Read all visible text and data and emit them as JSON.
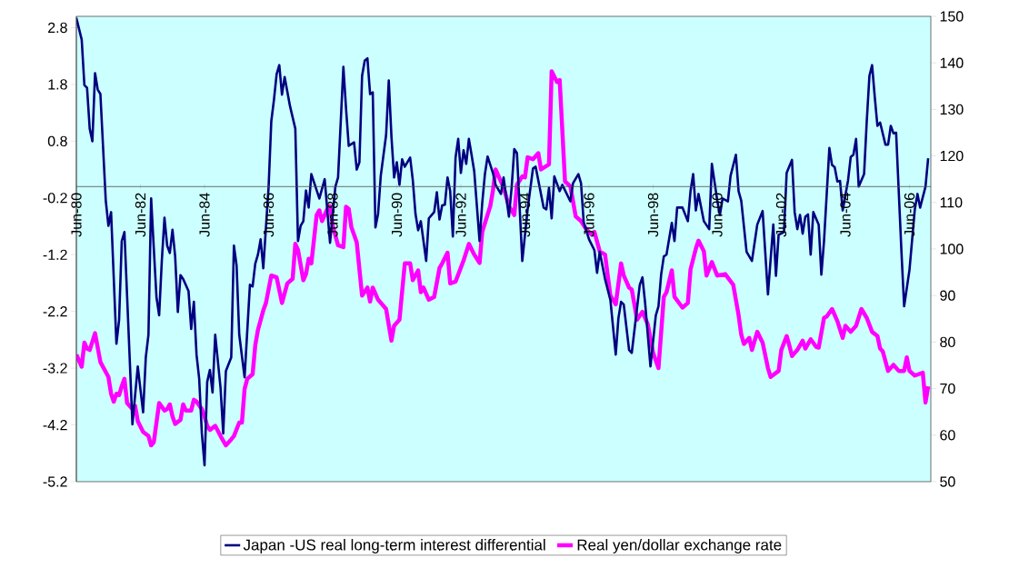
{
  "chart_data": {
    "type": "line",
    "series": [
      {
        "name": "Japan -US real long-term interest differential",
        "color": "#000080",
        "x": [
          "1980-06",
          "1980-08",
          "1980-09",
          "1980-10",
          "1980-11",
          "1980-12",
          "1981-01",
          "1981-02",
          "1981-03",
          "1981-05",
          "1981-06",
          "1981-07",
          "1981-09",
          "1981-10",
          "1981-11",
          "1981-12",
          "1982-03",
          "1982-05",
          "1982-07",
          "1982-08",
          "1982-09",
          "1982-10",
          "1982-11",
          "1982-12",
          "1983-01",
          "1983-02",
          "1983-03",
          "1983-04",
          "1983-05",
          "1983-06",
          "1983-07",
          "1983-08",
          "1983-09",
          "1983-10",
          "1983-12",
          "1984-01",
          "1984-02",
          "1984-03",
          "1984-04",
          "1984-05",
          "1984-06",
          "1984-07",
          "1984-08",
          "1984-09",
          "1984-10",
          "1984-12",
          "1985-01",
          "1985-02",
          "1985-04",
          "1985-05",
          "1985-06",
          "1985-07",
          "1985-09",
          "1985-11",
          "1985-12",
          "1986-01",
          "1986-02",
          "1986-03",
          "1986-04",
          "1986-06",
          "1986-07",
          "1986-08",
          "1986-09",
          "1986-10",
          "1986-11",
          "1986-12",
          "1987-02",
          "1987-04",
          "1987-05",
          "1987-06",
          "1987-07",
          "1987-08",
          "1987-09",
          "1987-10",
          "1988-01",
          "1988-03",
          "1988-05",
          "1988-07",
          "1988-08",
          "1988-10",
          "1988-11",
          "1988-12",
          "1989-02",
          "1989-03",
          "1989-04",
          "1989-05",
          "1989-06",
          "1989-07",
          "1989-08",
          "1989-09",
          "1989-10",
          "1989-11",
          "1989-12",
          "1990-02",
          "1990-03",
          "1990-04",
          "1990-05",
          "1990-06",
          "1990-07",
          "1990-08",
          "1990-09",
          "1990-11",
          "1990-12",
          "1991-01",
          "1991-02",
          "1991-03",
          "1991-05",
          "1991-06",
          "1991-08",
          "1991-09",
          "1991-10",
          "1991-11",
          "1991-12",
          "1992-01",
          "1992-02",
          "1992-03",
          "1992-04",
          "1992-05",
          "1992-06",
          "1992-07",
          "1992-08",
          "1992-09",
          "1992-10",
          "1992-11",
          "1993-01",
          "1993-02",
          "1993-03",
          "1993-04",
          "1993-06",
          "1993-07",
          "1993-09",
          "1993-10",
          "1993-12",
          "1994-01",
          "1994-02",
          "1994-03",
          "1994-05",
          "1994-07",
          "1994-09",
          "1994-10",
          "1995-01",
          "1995-02",
          "1995-03",
          "1995-04",
          "1995-05",
          "1995-07",
          "1995-08",
          "1995-11",
          "1995-12",
          "1996-02",
          "1996-03",
          "1996-04",
          "1996-06",
          "1996-08",
          "1996-09",
          "1996-10",
          "1996-12",
          "1997-02",
          "1997-04",
          "1997-05",
          "1997-06",
          "1997-07",
          "1997-09",
          "1997-10",
          "1998-01",
          "1998-02",
          "1998-03",
          "1998-05",
          "1998-07",
          "1998-08",
          "1998-09",
          "1998-10",
          "1998-11",
          "1999-01",
          "1999-02",
          "1999-03",
          "1999-05",
          "1999-07",
          "1999-08",
          "1999-09",
          "1999-10",
          "1999-11",
          "2000-01",
          "2000-03",
          "2000-04",
          "2000-06",
          "2000-07",
          "2000-08",
          "2000-10",
          "2000-11",
          "2001-01",
          "2001-02",
          "2001-03",
          "2001-05",
          "2001-07",
          "2001-09",
          "2001-11",
          "2002-01",
          "2002-03",
          "2002-04",
          "2002-05",
          "2002-07",
          "2002-08",
          "2002-10",
          "2002-11",
          "2002-12",
          "2003-01",
          "2003-02",
          "2003-03",
          "2003-04",
          "2003-05",
          "2003-06",
          "2003-08",
          "2003-09",
          "2003-10",
          "2003-12",
          "2004-01",
          "2004-02",
          "2004-03",
          "2004-04",
          "2004-05",
          "2004-07",
          "2004-08",
          "2004-09",
          "2004-10",
          "2004-11",
          "2005-01",
          "2005-02",
          "2005-03",
          "2005-04",
          "2005-05",
          "2005-06",
          "2005-07",
          "2005-09",
          "2005-10",
          "2005-11",
          "2005-12",
          "2006-01",
          "2006-03",
          "2006-04",
          "2006-06",
          "2006-08",
          "2006-09",
          "2006-10",
          "2006-12",
          "2007-01"
        ],
        "values": [
          2.97,
          2.59,
          1.79,
          1.74,
          1.02,
          0.8,
          2.0,
          1.71,
          1.63,
          -0.24,
          -0.69,
          -0.45,
          -2.77,
          -2.35,
          -0.96,
          -0.8,
          -4.19,
          -3.17,
          -3.98,
          -3.01,
          -2.61,
          -0.21,
          -1.09,
          -1.95,
          -2.27,
          -1.31,
          -0.55,
          -1.04,
          -1.17,
          -0.76,
          -1.23,
          -2.21,
          -1.56,
          -1.63,
          -1.84,
          -2.51,
          -2.03,
          -2.96,
          -3.39,
          -4.35,
          -4.91,
          -3.44,
          -3.23,
          -3.63,
          -2.61,
          -3.55,
          -4.35,
          -3.25,
          -3.01,
          -1.04,
          -1.39,
          -2.61,
          -3.36,
          -1.73,
          -1.76,
          -1.36,
          -1.2,
          -0.93,
          -1.44,
          0.0,
          1.15,
          1.53,
          1.98,
          2.14,
          1.62,
          1.93,
          1.42,
          1.02,
          -0.96,
          -0.69,
          -0.61,
          -0.07,
          -0.37,
          0.22,
          -0.21,
          0.13,
          -0.99,
          0.0,
          0.16,
          2.11,
          1.37,
          0.72,
          0.78,
          0.3,
          0.43,
          1.95,
          2.22,
          2.26,
          1.63,
          1.66,
          -0.72,
          -0.48,
          0.19,
          0.91,
          1.87,
          0.88,
          0.16,
          0.43,
          0.03,
          0.48,
          0.35,
          0.51,
          0.11,
          -0.48,
          -0.77,
          -0.61,
          -1.31,
          -0.56,
          -0.45,
          -0.1,
          -0.58,
          -0.33,
          -0.32,
          0.16,
          -0.08,
          -0.88,
          0.51,
          0.84,
          0.24,
          0.64,
          0.4,
          0.84,
          0.56,
          0.27,
          -0.96,
          -0.29,
          0.22,
          0.53,
          0.24,
          0.03,
          -0.13,
          0.16,
          -0.53,
          -0.02,
          0.66,
          0.59,
          -1.31,
          -0.4,
          0.32,
          0.35,
          -0.37,
          -0.4,
          -0.02,
          -0.56,
          0.18,
          -0.08,
          0.03,
          -0.26,
          0.06,
          0.22,
          0.06,
          -0.63,
          -0.93,
          -1.12,
          -1.52,
          -1.15,
          -1.63,
          -2.0,
          -2.96,
          -2.32,
          -2.03,
          -2.08,
          -2.88,
          -2.93,
          -1.73,
          -1.6,
          -2.05,
          -3.17,
          -2.27,
          -2.11,
          -1.55,
          -1.23,
          -1.2,
          -0.64,
          -0.96,
          -0.37,
          -0.37,
          -0.61,
          -0.08,
          0.22,
          -0.42,
          -0.13,
          -0.61,
          -0.75,
          0.4,
          -0.24,
          -0.5,
          -0.21,
          -0.26,
          0.19,
          0.56,
          -0.08,
          -0.25,
          -1.15,
          -1.31,
          -0.67,
          -0.43,
          -1.9,
          -0.67,
          -1.57,
          -0.85,
          -0.8,
          0.24,
          0.47,
          -0.45,
          -0.75,
          -0.5,
          -0.83,
          -0.53,
          -0.49,
          -1.2,
          -0.45,
          -0.67,
          -1.55,
          -0.96,
          0.68,
          0.38,
          0.34,
          0.09,
          0.1,
          -0.42,
          0.11,
          0.52,
          0.56,
          0.84,
          0.0,
          0.22,
          1.15,
          1.95,
          2.14,
          1.58,
          1.07,
          1.13,
          0.74,
          0.74,
          1.07,
          0.94,
          0.95,
          -1.15,
          -2.11,
          -1.47,
          -0.4,
          -0.13,
          -0.37,
          0.0,
          0.5
        ]
      },
      {
        "name": "Real yen/dollar exchange rate",
        "color": "#ff00ff",
        "axis": "y2",
        "x": [
          "1980-06",
          "1980-08",
          "1980-09",
          "1980-10",
          "1980-11",
          "1981-01",
          "1981-03",
          "1981-06",
          "1981-07",
          "1981-08",
          "1981-09",
          "1981-10",
          "1981-11",
          "1981-12",
          "1982-01",
          "1982-03",
          "1982-04",
          "1982-05",
          "1982-07",
          "1982-09",
          "1982-10",
          "1982-11",
          "1982-12",
          "1983-01",
          "1983-03",
          "1983-04",
          "1983-05",
          "1983-06",
          "1983-07",
          "1983-09",
          "1983-10",
          "1983-11",
          "1984-01",
          "1984-02",
          "1984-03",
          "1984-05",
          "1984-06",
          "1984-07",
          "1984-08",
          "1984-10",
          "1984-12",
          "1985-02",
          "1985-04",
          "1985-05",
          "1985-07",
          "1985-08",
          "1985-09",
          "1985-10",
          "1985-12",
          "1986-01",
          "1986-02",
          "1986-04",
          "1986-05",
          "1986-07",
          "1986-09",
          "1986-11",
          "1987-01",
          "1987-03",
          "1987-04",
          "1987-05",
          "1987-07",
          "1987-08",
          "1987-09",
          "1987-10",
          "1987-12",
          "1988-01",
          "1988-02",
          "1988-04",
          "1988-05",
          "1988-06",
          "1988-08",
          "1988-10",
          "1988-11",
          "1988-12",
          "1989-01",
          "1989-03",
          "1989-05",
          "1989-07",
          "1989-08",
          "1989-09",
          "1989-11",
          "1990-02",
          "1990-04",
          "1990-05",
          "1990-07",
          "1990-09",
          "1990-11",
          "1990-12",
          "1991-02",
          "1991-03",
          "1991-04",
          "1991-06",
          "1991-08",
          "1991-10",
          "1991-11",
          "1992-01",
          "1992-02",
          "1992-04",
          "1992-07",
          "1992-09",
          "1992-11",
          "1993-01",
          "1993-02",
          "1993-05",
          "1993-06",
          "1993-07",
          "1993-10",
          "1993-12",
          "1994-02",
          "1994-03",
          "1994-05",
          "1994-06",
          "1994-07",
          "1994-09",
          "1994-11",
          "1994-12",
          "1995-03",
          "1995-04",
          "1995-06",
          "1995-07",
          "1995-09",
          "1995-11",
          "1996-01",
          "1996-03",
          "1996-05",
          "1996-07",
          "1996-08",
          "1996-10",
          "1996-12",
          "1997-01",
          "1997-02",
          "1997-04",
          "1997-06",
          "1997-07",
          "1997-09",
          "1997-10",
          "1997-12",
          "1998-02",
          "1998-04",
          "1998-06",
          "1998-08",
          "1998-10",
          "1998-11",
          "1999-01",
          "1999-02",
          "1999-05",
          "1999-07",
          "1999-08",
          "1999-10",
          "1999-11",
          "2000-01",
          "2000-02",
          "2000-04",
          "2000-06",
          "2000-09",
          "2000-12",
          "2001-02",
          "2001-03",
          "2001-04",
          "2001-06",
          "2001-07",
          "2001-09",
          "2001-11",
          "2002-01",
          "2002-02",
          "2002-05",
          "2002-06",
          "2002-08",
          "2002-09",
          "2002-10",
          "2002-12",
          "2003-02",
          "2003-03",
          "2003-05",
          "2003-07",
          "2003-08",
          "2003-10",
          "2003-11",
          "2004-01",
          "2004-03",
          "2004-05",
          "2004-06",
          "2004-08",
          "2004-10",
          "2004-12",
          "2005-02",
          "2005-04",
          "2005-06",
          "2005-07",
          "2005-08",
          "2005-10",
          "2005-12",
          "2006-02",
          "2006-04",
          "2006-05",
          "2006-06",
          "2006-08",
          "2006-11",
          "2006-12",
          "2007-01"
        ],
        "values": [
          77.3,
          74.7,
          79.9,
          78.6,
          78.3,
          81.9,
          75.7,
          72.5,
          68.9,
          67.2,
          68.9,
          68.6,
          70.5,
          72.1,
          66.9,
          65.6,
          66.3,
          63.0,
          60.7,
          59.8,
          57.8,
          58.5,
          62.7,
          66.9,
          65.3,
          65.6,
          66.6,
          64.0,
          62.4,
          63.3,
          66.6,
          65.3,
          65.3,
          67.6,
          67.2,
          65.6,
          64.0,
          62.0,
          61.1,
          62.0,
          59.8,
          57.8,
          59.1,
          59.8,
          62.7,
          62.7,
          69.9,
          72.1,
          73.1,
          79.3,
          82.6,
          86.8,
          88.4,
          94.3,
          93.9,
          88.4,
          92.6,
          93.6,
          101.1,
          99.8,
          93.3,
          94.6,
          97.9,
          96.9,
          107.3,
          108.3,
          106.0,
          108.6,
          109.2,
          105.0,
          100.8,
          100.4,
          109.1,
          108.6,
          104.7,
          101.4,
          90.0,
          91.7,
          88.7,
          91.7,
          89.1,
          87.1,
          80.3,
          83.5,
          84.8,
          96.9,
          96.9,
          93.3,
          95.4,
          90.7,
          91.7,
          89.1,
          89.7,
          95.9,
          96.9,
          99.2,
          92.6,
          93.0,
          97.5,
          101.1,
          98.8,
          97.0,
          103.7,
          109.2,
          112.5,
          117.1,
          113.2,
          109.2,
          107.3,
          113.8,
          115.6,
          115.4,
          119.7,
          119.3,
          120.6,
          117.1,
          118.2,
          138.2,
          135.9,
          136.3,
          114.5,
          113.5,
          107.0,
          106.0,
          104.2,
          103.1,
          103.7,
          99.5,
          98.8,
          94.3,
          90.0,
          88.1,
          96.9,
          94.3,
          91.7,
          91.3,
          84.8,
          86.5,
          83.8,
          77.7,
          74.4,
          89.7,
          90.7,
          95.4,
          89.7,
          87.4,
          88.4,
          95.6,
          100.1,
          101.8,
          99.5,
          94.3,
          97.2,
          94.3,
          94.6,
          92.3,
          85.8,
          81.6,
          79.6,
          80.9,
          78.3,
          82.2,
          79.9,
          74.4,
          72.5,
          73.8,
          78.3,
          81.3,
          79.3,
          77.0,
          78.3,
          80.3,
          78.6,
          80.6,
          79.0,
          78.8,
          85.2,
          85.5,
          87.1,
          84.5,
          80.9,
          83.5,
          82.2,
          83.5,
          87.1,
          85.2,
          82.2,
          81.3,
          78.6,
          78.0,
          73.8,
          75.1,
          73.8,
          73.8,
          76.7,
          73.8,
          72.8,
          73.4,
          67.0,
          70.5
        ]
      }
    ],
    "xlim": [
      "1980-06",
      "2007-02"
    ],
    "xticks": [
      {
        "value": "1980-06",
        "label": "Jun-80"
      },
      {
        "value": "1982-06",
        "label": "Jun-82"
      },
      {
        "value": "1984-06",
        "label": "Jun-84"
      },
      {
        "value": "1986-06",
        "label": "Jun-86"
      },
      {
        "value": "1988-06",
        "label": "Jun-88"
      },
      {
        "value": "1990-06",
        "label": "Jun-90"
      },
      {
        "value": "1992-06",
        "label": "Jun-92"
      },
      {
        "value": "1994-06",
        "label": "Jun-94"
      },
      {
        "value": "1996-06",
        "label": "Jun-96"
      },
      {
        "value": "1998-06",
        "label": "Jun-98"
      },
      {
        "value": "2000-06",
        "label": "Jun-00"
      },
      {
        "value": "2002-06",
        "label": "Jun-02"
      },
      {
        "value": "2004-06",
        "label": "Jun-04"
      },
      {
        "value": "2006-06",
        "label": "Jun-06"
      }
    ],
    "ylim": [
      -5.2,
      3.0
    ],
    "yticks": [
      -5.2,
      -4.2,
      -3.2,
      -2.2,
      -1.2,
      -0.2,
      0.8,
      1.8,
      2.8
    ],
    "y2lim": [
      50,
      150
    ],
    "y2ticks": [
      50,
      60,
      70,
      80,
      90,
      100,
      110,
      120,
      130,
      140,
      150
    ],
    "legend": "bottom"
  }
}
